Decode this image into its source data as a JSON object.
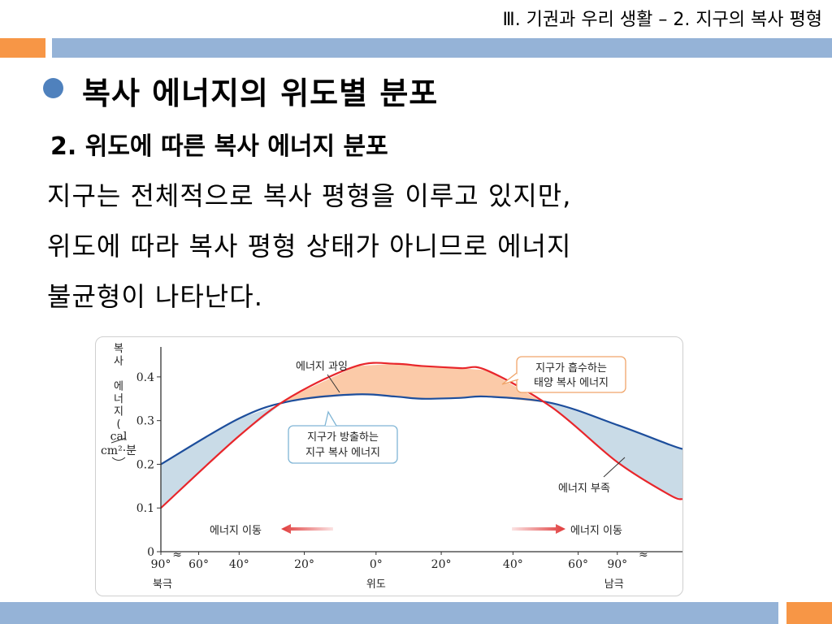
{
  "header": {
    "text": "Ⅲ. 기권과 우리 생활 – 2. 지구의 복사 평형"
  },
  "slide": {
    "title": "복사 에너지의 위도별 분포",
    "subtitle": "2. 위도에 따른 복사 에너지 분포",
    "body_lines": [
      "지구는 전체적으로 복사 평형을 이루고 있지만,",
      "위도에 따라 복사 평형 상태가 아니므로 에너지",
      "불균형이 나타난다."
    ]
  },
  "colors": {
    "accent_orange": "#f79646",
    "accent_blue": "#95b3d7",
    "bullet": "#4f81bd",
    "absorbed_line": "#e8262b",
    "emitted_line": "#1d4e9c",
    "surplus_fill": "#fbcaa8",
    "deficit_fill": "#c9dbe7",
    "arrow_red": "#e03a3a"
  },
  "chart_data": {
    "type": "line",
    "ylabel_chars": [
      "복",
      "사",
      "",
      "에",
      "너",
      "지",
      "(",
      "cal"
    ],
    "yunit": "cm²·분",
    "ylim": [
      0,
      0.45
    ],
    "yticks": [
      "0",
      "0.1",
      "0.2",
      "0.3",
      "0.4"
    ],
    "ytick_values": [
      0,
      0.1,
      0.2,
      0.3,
      0.4
    ],
    "xlabel": "위도",
    "xticks": [
      "90°",
      "60°",
      "40°",
      "20°",
      "0°",
      "20°",
      "40°",
      "60°",
      "90°"
    ],
    "x_left_label": "북극",
    "x_right_label": "남극",
    "x": [
      0,
      1.2,
      2.0,
      3.0,
      3.6,
      4.0,
      4.6,
      5.0,
      6.0,
      7.0,
      7.8,
      8.0
    ],
    "series": [
      {
        "name": "지구가 흡수하는 태양 복사 에너지",
        "values": [
          0.1,
          0.265,
          0.355,
          0.425,
          0.43,
          0.425,
          0.42,
          0.415,
          0.33,
          0.205,
          0.13,
          0.12
        ]
      },
      {
        "name": "지구가 방출하는 지구 복사 에너지",
        "values": [
          0.2,
          0.305,
          0.345,
          0.36,
          0.355,
          0.35,
          0.352,
          0.355,
          0.34,
          0.29,
          0.245,
          0.235
        ]
      }
    ],
    "annotations": {
      "surplus": "에너지 과잉",
      "deficit": "에너지 부족",
      "absorbed_box": [
        "지구가 흡수하는",
        "태양 복사 에너지"
      ],
      "emitted_box": [
        "지구가 방출하는",
        "지구 복사 에너지"
      ],
      "transfer_left": "에너지 이동",
      "transfer_right": "에너지 이동"
    },
    "grid": false
  }
}
